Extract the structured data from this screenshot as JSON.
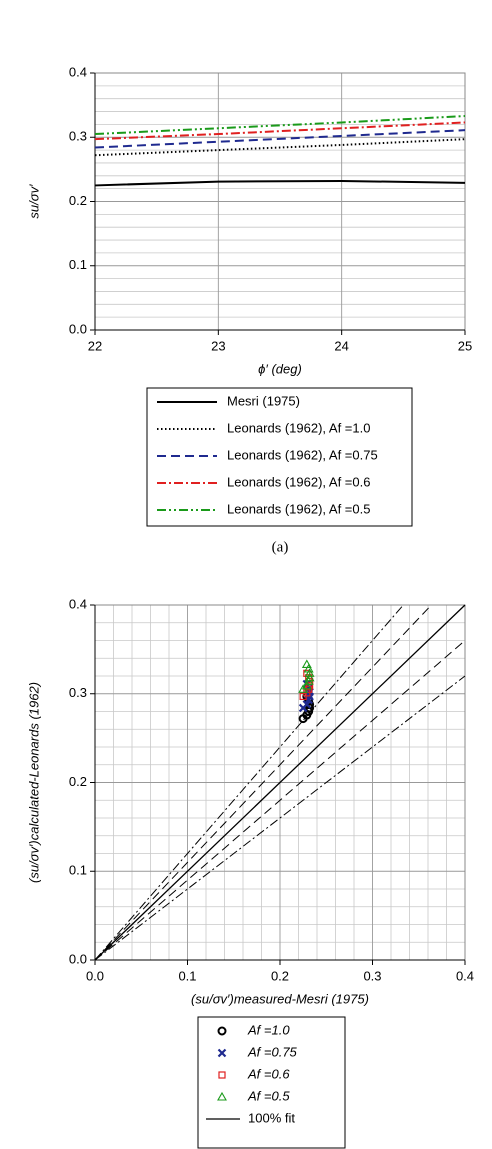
{
  "chart_data": [
    {
      "type": "line",
      "x_label": "ϕ′ (deg)",
      "y_label": "su/σv′",
      "caption": "(a)",
      "x": [
        22,
        23,
        24,
        25
      ],
      "xlim": [
        22,
        25
      ],
      "xticks": [
        22,
        23,
        24,
        25
      ],
      "ylim": [
        0,
        0.4
      ],
      "yticks": [
        {
          "value": 0,
          "label": "0.0"
        },
        0.1,
        0.2,
        0.3,
        0.4
      ],
      "grid": true,
      "minor_grid": "y",
      "legend": "below",
      "series": [
        {
          "name": "Mesri (1975)",
          "color": "#000000",
          "style": "solid",
          "values": [
            0.225,
            0.231,
            0.232,
            0.229
          ]
        },
        {
          "name": "Leonards (1962), Af =1.0",
          "color": "#000000",
          "style": "dotted",
          "values": [
            0.272,
            0.28,
            0.288,
            0.297
          ]
        },
        {
          "name": "Leonards (1962), Af =0.75",
          "color": "#1f2a8f",
          "style": "dashed",
          "values": [
            0.284,
            0.293,
            0.302,
            0.311
          ]
        },
        {
          "name": "Leonards (1962), Af =0.6",
          "color": "#e02020",
          "style": "dashdot",
          "values": [
            0.297,
            0.305,
            0.314,
            0.323
          ]
        },
        {
          "name": "Leonards (1962), Af =0.5",
          "color": "#1a9a1a",
          "style": "dashdotdot",
          "values": [
            0.305,
            0.314,
            0.323,
            0.333
          ]
        }
      ]
    },
    {
      "type": "scatter",
      "x_label": "(su/σv′)measured-Mesri (1975)",
      "y_label": "(su/σv′)calculated-Leonards (1962)",
      "xlim": [
        0,
        0.4
      ],
      "xticks": [
        {
          "value": 0,
          "label": "0.0"
        },
        0.1,
        0.2,
        0.3,
        0.4
      ],
      "ylim": [
        0,
        0.4
      ],
      "yticks": [
        {
          "value": 0,
          "label": "0.0"
        },
        0.1,
        0.2,
        0.3,
        0.4
      ],
      "grid": true,
      "minor_grid": "both",
      "legend": "below",
      "series": [
        {
          "name": "Af =1.0",
          "color": "#000000",
          "marker": "circle",
          "x": [
            0.225,
            0.229,
            0.231,
            0.232,
            0.232,
            0.231,
            0.229
          ],
          "values": [
            0.272,
            0.276,
            0.28,
            0.284,
            0.288,
            0.292,
            0.297
          ]
        },
        {
          "name": "Af =0.75",
          "color": "#1f2a8f",
          "marker": "x",
          "x": [
            0.225,
            0.229,
            0.231,
            0.232,
            0.232,
            0.231,
            0.229
          ],
          "values": [
            0.284,
            0.288,
            0.293,
            0.297,
            0.302,
            0.306,
            0.311
          ]
        },
        {
          "name": "Af =0.6",
          "color": "#e02020",
          "marker": "square",
          "x": [
            0.225,
            0.229,
            0.231,
            0.232,
            0.232,
            0.231,
            0.229
          ],
          "values": [
            0.297,
            0.301,
            0.305,
            0.309,
            0.314,
            0.318,
            0.323
          ]
        },
        {
          "name": "Af =0.5",
          "color": "#1a9a1a",
          "marker": "triangle",
          "x": [
            0.225,
            0.229,
            0.231,
            0.232,
            0.232,
            0.231,
            0.229
          ],
          "values": [
            0.305,
            0.309,
            0.314,
            0.318,
            0.323,
            0.328,
            0.333
          ]
        }
      ],
      "fit_line": {
        "name": "100% fit",
        "slope": 1,
        "color": "#000000",
        "style": "solid"
      },
      "reference_lines": [
        {
          "slope": 1.1,
          "style": "dashed"
        },
        {
          "slope": 0.9,
          "style": "dashed"
        },
        {
          "slope": 1.2,
          "style": "dashdot"
        },
        {
          "slope": 0.8,
          "style": "dashdot"
        }
      ]
    }
  ]
}
